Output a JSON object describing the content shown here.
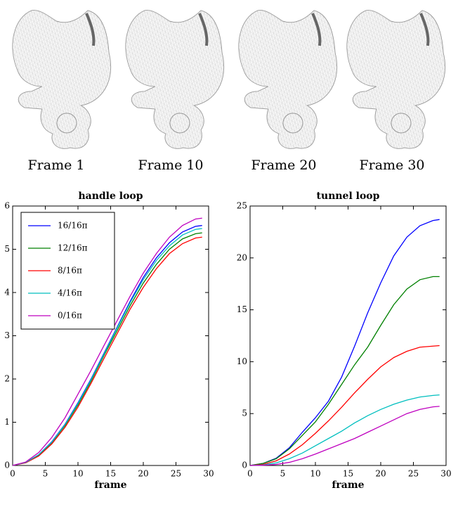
{
  "figure": {
    "frame_labels": [
      "Frame 1",
      "Frame 10",
      "Frame 20",
      "Frame 30"
    ]
  },
  "chart_data": [
    {
      "type": "line",
      "title": "handle loop",
      "xlabel": "frame",
      "x": [
        0,
        2,
        4,
        6,
        8,
        10,
        12,
        14,
        16,
        18,
        20,
        22,
        24,
        26,
        28,
        29
      ],
      "xlim": [
        0,
        30
      ],
      "xticks": [
        0,
        5,
        10,
        15,
        20,
        25,
        30
      ],
      "ylim": [
        0,
        6
      ],
      "yticks": [
        0,
        1,
        2,
        3,
        4,
        5,
        6
      ],
      "legend": "upper left",
      "series": [
        {
          "name": "16/16π",
          "color": "#0000ff",
          "values": [
            0,
            0.07,
            0.25,
            0.55,
            0.95,
            1.45,
            2.0,
            2.6,
            3.2,
            3.8,
            4.35,
            4.8,
            5.15,
            5.4,
            5.53,
            5.55
          ]
        },
        {
          "name": "12/16π",
          "color": "#008000",
          "values": [
            0,
            0.07,
            0.24,
            0.53,
            0.92,
            1.4,
            1.95,
            2.55,
            3.12,
            3.7,
            4.22,
            4.65,
            5.0,
            5.24,
            5.36,
            5.38
          ]
        },
        {
          "name": "8/16π",
          "color": "#ff0000",
          "values": [
            0,
            0.06,
            0.22,
            0.5,
            0.88,
            1.35,
            1.9,
            2.48,
            3.05,
            3.62,
            4.12,
            4.55,
            4.9,
            5.13,
            5.26,
            5.28
          ]
        },
        {
          "name": "4/16π",
          "color": "#00bfbf",
          "values": [
            0,
            0.07,
            0.25,
            0.54,
            0.94,
            1.43,
            1.98,
            2.58,
            3.18,
            3.77,
            4.3,
            4.74,
            5.08,
            5.33,
            5.46,
            5.48
          ]
        },
        {
          "name": "0/16π",
          "color": "#bf00bf",
          "values": [
            0,
            0.08,
            0.3,
            0.65,
            1.1,
            1.65,
            2.2,
            2.78,
            3.35,
            3.92,
            4.45,
            4.9,
            5.28,
            5.55,
            5.7,
            5.72
          ]
        }
      ]
    },
    {
      "type": "line",
      "title": "tunnel loop",
      "xlabel": "frame",
      "x": [
        0,
        2,
        4,
        6,
        8,
        10,
        12,
        14,
        16,
        18,
        20,
        22,
        24,
        26,
        28,
        29
      ],
      "xlim": [
        0,
        30
      ],
      "xticks": [
        0,
        5,
        10,
        15,
        20,
        25,
        30
      ],
      "ylim": [
        0,
        25
      ],
      "yticks": [
        0,
        5,
        10,
        15,
        20,
        25
      ],
      "series": [
        {
          "color": "#0000ff",
          "values": [
            0,
            0.2,
            0.7,
            1.7,
            3.2,
            4.6,
            6.2,
            8.5,
            11.5,
            14.7,
            17.6,
            20.2,
            22.0,
            23.1,
            23.6,
            23.7
          ]
        },
        {
          "color": "#008000",
          "values": [
            0,
            0.2,
            0.65,
            1.6,
            2.9,
            4.2,
            5.9,
            7.8,
            9.7,
            11.4,
            13.5,
            15.5,
            17.0,
            17.9,
            18.2,
            18.2
          ]
        },
        {
          "color": "#ff0000",
          "values": [
            0,
            0.1,
            0.45,
            1.1,
            2.0,
            3.1,
            4.3,
            5.6,
            7.0,
            8.3,
            9.5,
            10.4,
            11.0,
            11.4,
            11.5,
            11.55
          ]
        },
        {
          "color": "#00bfbf",
          "values": [
            0,
            0.05,
            0.25,
            0.65,
            1.2,
            1.9,
            2.6,
            3.3,
            4.1,
            4.8,
            5.4,
            5.9,
            6.3,
            6.6,
            6.75,
            6.8
          ]
        },
        {
          "color": "#bf00bf",
          "values": [
            0,
            0.02,
            0.1,
            0.3,
            0.65,
            1.1,
            1.6,
            2.1,
            2.6,
            3.2,
            3.8,
            4.4,
            5.0,
            5.4,
            5.65,
            5.7
          ]
        }
      ]
    }
  ]
}
